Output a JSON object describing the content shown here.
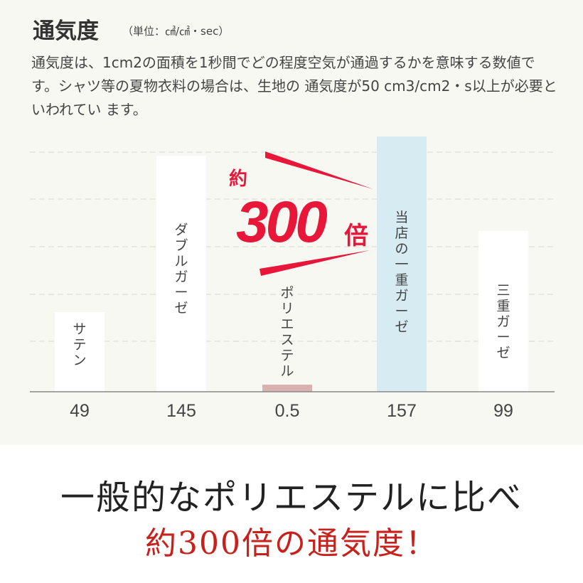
{
  "header": {
    "title": "通気度",
    "unit": "（単位：㎤/㎠・sec）"
  },
  "description": "通気度は、1cm2の面積を1秒間でどの程度空気が通過するかを意味する数値です。シャツ等の夏物衣料の場合は、生地の 通気度が50 cm3/cm2・s以上が必要といわれてい ます。",
  "chart_data": {
    "type": "bar",
    "categories": [
      "サテン",
      "ダブルガーゼ",
      "ポリエステル",
      "当店の一重ガーゼ",
      "三重ガーゼ"
    ],
    "values": [
      49,
      145,
      0.5,
      157,
      99
    ],
    "value_labels": [
      "49",
      "145",
      "0.5",
      "157",
      "99"
    ],
    "colors": [
      "#ffffff",
      "#ffffff",
      "#d9b2b0",
      "#d6ebf2",
      "#ffffff"
    ],
    "grid": true,
    "annotation": {
      "prefix": "約",
      "number": "300",
      "suffix": "倍",
      "color": "#e8173a"
    }
  },
  "footer": {
    "line1": "一般的なポリエステルに比べ",
    "line2": "約300倍の通気度！"
  }
}
